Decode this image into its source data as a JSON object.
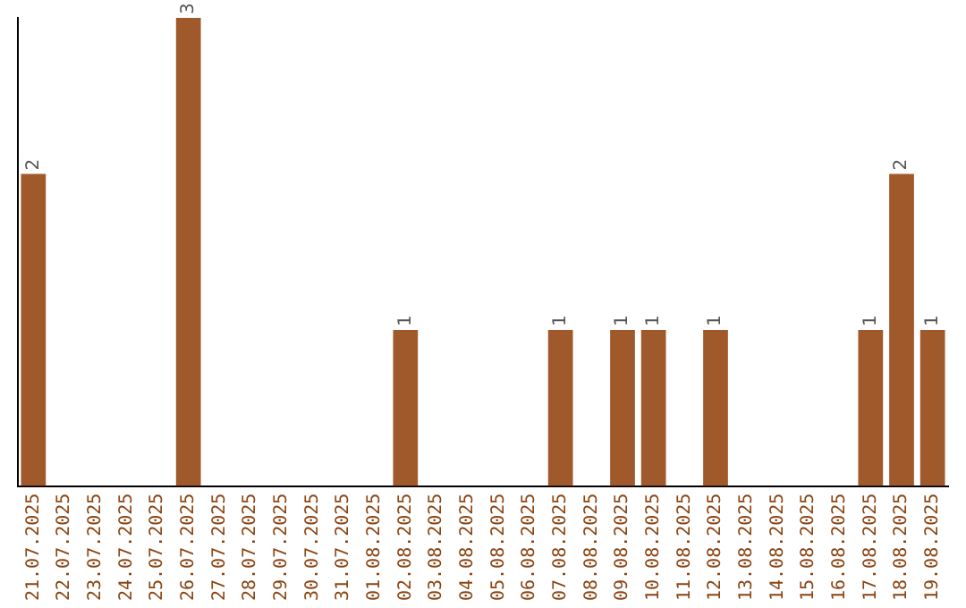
{
  "chart_data": {
    "type": "bar",
    "categories": [
      "21.07.2025",
      "22.07.2025",
      "23.07.2025",
      "24.07.2025",
      "25.07.2025",
      "26.07.2025",
      "27.07.2025",
      "28.07.2025",
      "29.07.2025",
      "30.07.2025",
      "31.07.2025",
      "01.08.2025",
      "02.08.2025",
      "03.08.2025",
      "04.08.2025",
      "05.08.2025",
      "06.08.2025",
      "07.08.2025",
      "08.08.2025",
      "09.08.2025",
      "10.08.2025",
      "11.08.2025",
      "12.08.2025",
      "13.08.2025",
      "14.08.2025",
      "15.08.2025",
      "16.08.2025",
      "17.08.2025",
      "18.08.2025",
      "19.08.2025"
    ],
    "values": [
      2,
      0,
      0,
      0,
      0,
      3,
      0,
      0,
      0,
      0,
      0,
      0,
      1,
      0,
      0,
      0,
      0,
      1,
      0,
      1,
      1,
      0,
      1,
      0,
      0,
      0,
      0,
      1,
      2,
      1
    ],
    "value_labels": [
      "2",
      null,
      null,
      null,
      null,
      "3",
      null,
      null,
      null,
      null,
      null,
      null,
      "1",
      null,
      null,
      null,
      null,
      "1",
      null,
      "1",
      "1",
      null,
      "1",
      null,
      null,
      null,
      null,
      "1",
      "2",
      "1"
    ],
    "color": "#a0592b",
    "grid": false,
    "legend": false,
    "tick_labels": "x"
  }
}
